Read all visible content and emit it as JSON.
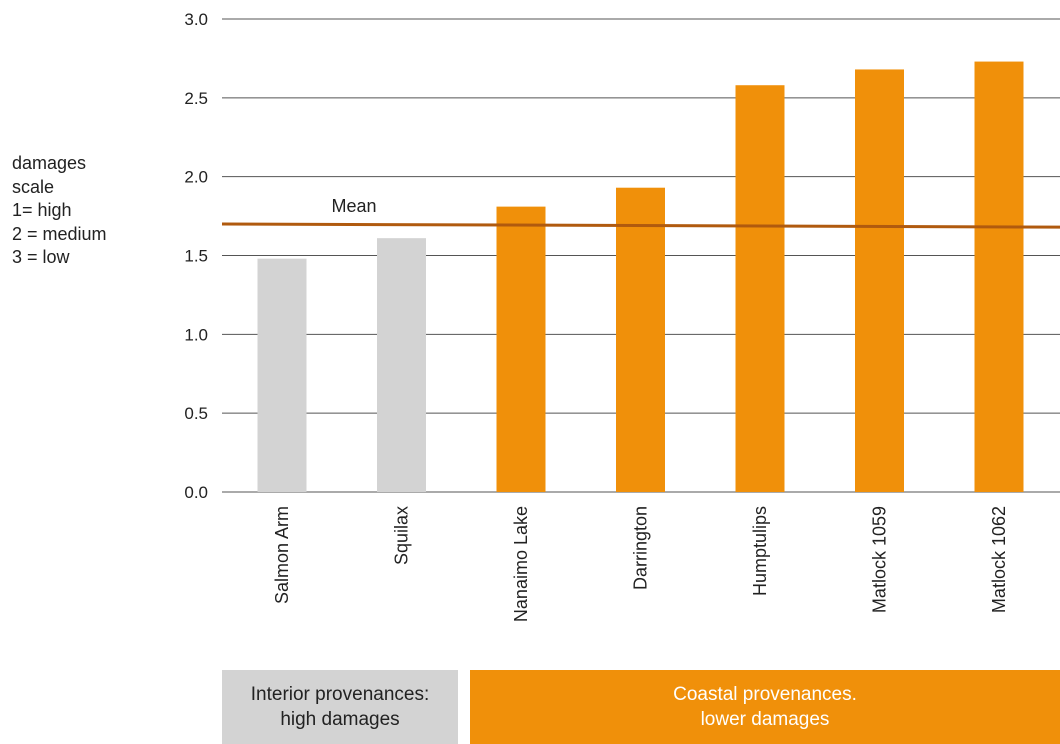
{
  "chart_data": {
    "type": "bar",
    "ylabel_lines": [
      "damages",
      "scale",
      "1= high",
      "2 = medium",
      "3 = low"
    ],
    "ylim": [
      0,
      3.0
    ],
    "yticks": [
      0.0,
      0.5,
      1.0,
      1.5,
      2.0,
      2.5,
      3.0
    ],
    "ytick_labels": [
      "0.0",
      "0.5",
      "1.0",
      "1.5",
      "2.0",
      "2.5",
      "3.0"
    ],
    "grid": true,
    "categories": [
      "Salmon Arm",
      "Squilax",
      "Nanaimo Lake",
      "Darrington",
      "Humptulips",
      "Matlock 1059",
      "Matlock 1062"
    ],
    "values": [
      1.48,
      1.61,
      1.81,
      1.93,
      2.58,
      2.68,
      2.73
    ],
    "groups": [
      "interior",
      "interior",
      "coastal",
      "coastal",
      "coastal",
      "coastal",
      "coastal"
    ],
    "mean": {
      "label": "Mean",
      "start_value": 1.7,
      "end_value": 1.68
    },
    "group_labels": {
      "interior": [
        "Interior provenances:",
        "high damages"
      ],
      "coastal": [
        "Coastal provenances.",
        "lower damages"
      ]
    },
    "colors": {
      "interior": "#d3d3d3",
      "coastal": "#f0900a",
      "mean": "#b05a0e",
      "grid": "#555555"
    }
  }
}
